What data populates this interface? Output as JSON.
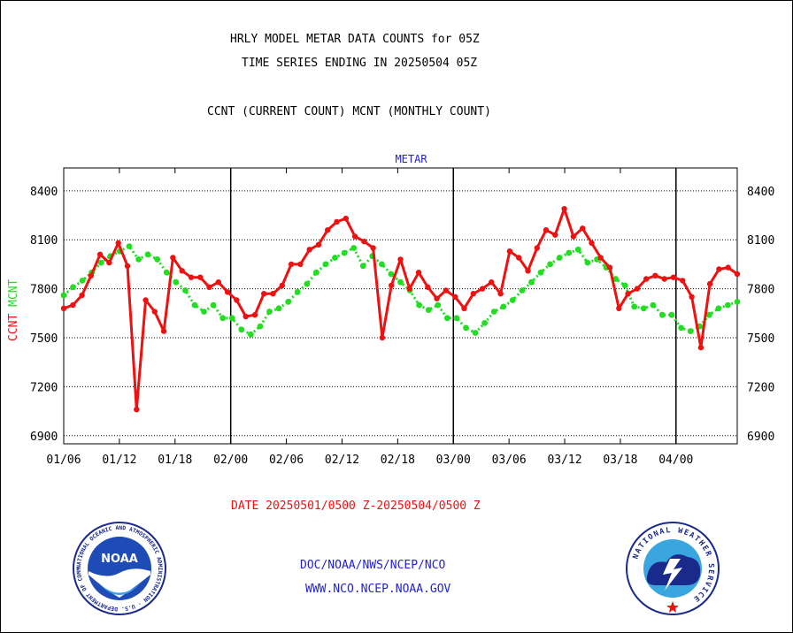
{
  "header": {
    "title1": "HRLY MODEL METAR DATA COUNTS for 05Z",
    "title2": "TIME SERIES ENDING IN 20250504 05Z",
    "subtitle": "CCNT (CURRENT COUNT) MCNT (MONTHLY COUNT)"
  },
  "footer": {
    "date_range": "DATE 20250501/0500 Z-20250504/0500 Z",
    "org": "DOC/NOAA/NWS/NCEP/NCO",
    "url": "WWW.NCO.NCEP.NOAA.GOV"
  },
  "logos": {
    "noaa_text": "NOAA",
    "noaa_ring": "NATIONAL OCEANIC AND ATMOSPHERIC ADMINISTRATION · U.S. DEPARTMENT OF COMMERCE ·",
    "nws_ring": "NATIONAL WEATHER SERVICE"
  },
  "colors": {
    "ccnt": "#ee1111",
    "mcnt": "#22dd22",
    "blue_text": "#2222cc",
    "red_text": "#ee1111"
  },
  "chart_data": {
    "type": "line",
    "title": "METAR",
    "ylabel_left": [
      "CCNT",
      "MCNT"
    ],
    "ylim": [
      6850,
      8540
    ],
    "yticks": [
      6900,
      7200,
      7500,
      7800,
      8100,
      8400
    ],
    "ytick_labels": [
      "6900",
      "7200",
      "7500",
      "7800",
      "8100",
      "8400"
    ],
    "xlim": [
      0,
      60.5
    ],
    "xticks": [
      0,
      5,
      10,
      15,
      20,
      25,
      30,
      35,
      40,
      45,
      50,
      55
    ],
    "xtick_labels": [
      "01/06",
      "01/12",
      "01/18",
      "02/00",
      "02/06",
      "02/12",
      "02/18",
      "03/00",
      "03/06",
      "03/12",
      "03/18",
      "04/00"
    ],
    "day_boundaries": [
      15,
      35,
      55
    ],
    "grid": true,
    "series": [
      {
        "name": "CCNT",
        "color": "#ee1111",
        "values": [
          7680,
          7700,
          7760,
          7880,
          8010,
          7960,
          8080,
          7940,
          7060,
          7730,
          7660,
          7540,
          7990,
          7910,
          7870,
          7870,
          7810,
          7840,
          7780,
          7730,
          7630,
          7640,
          7770,
          7770,
          7820,
          7950,
          7950,
          8040,
          8070,
          8160,
          8210,
          8230,
          8120,
          8090,
          8050,
          7500,
          7820,
          7980,
          7800,
          7900,
          7810,
          7740,
          7790,
          7750,
          7680,
          7770,
          7800,
          7840,
          7770,
          8030,
          7990,
          7910,
          8050,
          8160,
          8130,
          8290,
          8120,
          8170,
          8080,
          7990,
          7930
        ]
      },
      {
        "name": "MCNT",
        "color": "#22dd22",
        "values": [
          7760,
          7810,
          7850,
          7900,
          7960,
          8000,
          8030,
          8060,
          7980,
          8010,
          7980,
          7900,
          7840,
          7790,
          7700,
          7660,
          7700,
          7620,
          7620,
          7550,
          7520,
          7570,
          7660,
          7680,
          7720,
          7780,
          7830,
          7900,
          7950,
          7990,
          8020,
          8050,
          7940,
          8000,
          7950,
          7890,
          7840,
          7790,
          7700,
          7670,
          7700,
          7620,
          7620,
          7560,
          7530,
          7590,
          7660,
          7690,
          7730,
          7790,
          7840,
          7900,
          7950,
          7990,
          8020,
          8040,
          7960,
          7980,
          7930,
          7860,
          7820
        ]
      }
    ],
    "ccnt_tail": [
      7680,
      7770,
      7800,
      7860,
      7880,
      7860,
      7870,
      7850,
      7750,
      7440,
      7830,
      7920,
      7930,
      7890
    ],
    "mcnt_tail": [
      7690,
      7680,
      7700,
      7640,
      7640,
      7560,
      7540,
      7570,
      7640,
      7680,
      7700,
      7720
    ]
  }
}
